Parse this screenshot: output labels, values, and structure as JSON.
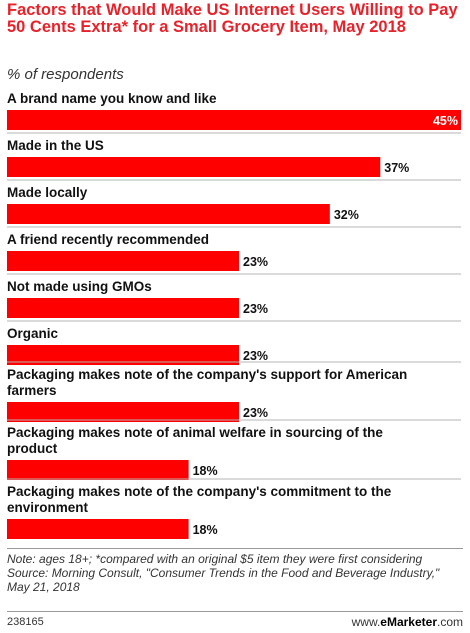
{
  "header": {
    "title": "Factors that Would Make US Internet Users Willing to Pay 50 Cents Extra* for a Small Grocery Item, May 2018",
    "subtitle": "% of respondents"
  },
  "chart_data": {
    "type": "bar",
    "orientation": "horizontal",
    "categories": [
      "A brand name you know and like",
      "Made in the US",
      "Made locally",
      "A friend recently recommended",
      "Not made using GMOs",
      "Organic",
      "Packaging makes note of the company's support for American farmers",
      "Packaging makes note of animal welfare in sourcing of the product",
      "Packaging makes note of the company's commitment to the environment"
    ],
    "values": [
      45,
      37,
      32,
      23,
      23,
      23,
      23,
      18,
      18
    ],
    "value_labels": [
      "45%",
      "37%",
      "32%",
      "23%",
      "23%",
      "23%",
      "23%",
      "18%",
      "18%"
    ],
    "unit": "%",
    "xlim": [
      0,
      45
    ],
    "bar_color": "#ff0000",
    "grid": false
  },
  "footer": {
    "note": "Note: ages 18+; *compared with an original $5 item they were first considering",
    "source": "Source: Morning Consult, \"Consumer Trends in the Food and Beverage Industry,\" May 21, 2018",
    "chart_id": "238165",
    "brand_prefix": "www.",
    "brand_name": "eMarketer",
    "brand_suffix": ".com"
  }
}
